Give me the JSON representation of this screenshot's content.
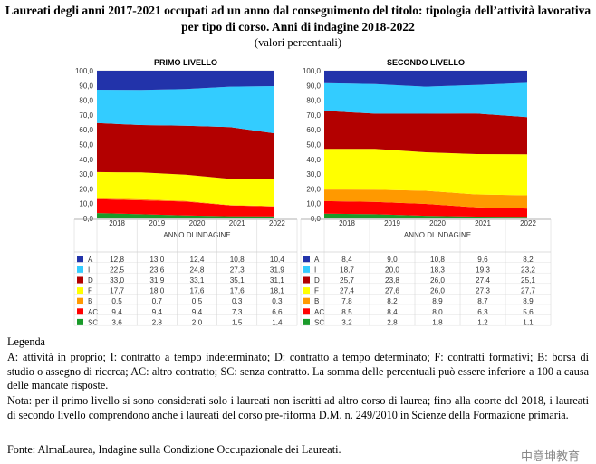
{
  "title_line1": "Laureati degli anni 2017-2021 occupati ad un anno dal conseguimento del titolo: tipologia dell’attività lavorativa",
  "title_line2": "per tipo di corso. Anni di indagine 2018-2022",
  "subtitle": "(valori percentuali)",
  "legend_heading": "Legenda",
  "legend_body": "A: attività in proprio; I: contratto a tempo indeterminato; D: contratto a tempo determinato; F: contratti formativi; B: borsa di studio o assegno di ricerca; AC: altro contratto; SC: senza contratto. La somma delle percentuali può essere inferiore a 100 a causa delle mancate risposte.",
  "note": "Nota: per il primo livello si sono considerati solo i laureati non iscritti ad altro corso di laurea; fino alla coorte del 2018, i laureati di secondo livello comprendono anche i laureati del corso pre-riforma D.M. n. 249/2010 in Scienze della Formazione primaria.",
  "source": "Fonte: AlmaLaurea, Indagine sulla Condizione Occupazionale dei Laureati.",
  "watermark": "中意坤教育",
  "colors": {
    "SC": "#1a9a2a",
    "AC": "#ff0000",
    "B": "#ff9900",
    "F": "#ffff00",
    "D": "#b30000",
    "I": "#33ccff",
    "A": "#2233aa"
  },
  "chart_data": [
    {
      "type": "area",
      "stacked": true,
      "title": "PRIMO LIVELLO",
      "xlabel": "ANNO DI INDAGINE",
      "x": [
        "2018",
        "2019",
        "2020",
        "2021",
        "2022"
      ],
      "ylim": [
        0,
        100
      ],
      "yticks": [
        "0,0",
        "10,0",
        "20,0",
        "30,0",
        "40,0",
        "50,0",
        "60,0",
        "70,0",
        "80,0",
        "90,0",
        "100,0"
      ],
      "grid": true,
      "series": [
        {
          "name": "A",
          "values": [
            12.8,
            13.0,
            12.4,
            10.8,
            10.4
          ],
          "labels": [
            "12,8",
            "13,0",
            "12,4",
            "10,8",
            "10,4"
          ]
        },
        {
          "name": "I",
          "values": [
            22.5,
            23.6,
            24.8,
            27.3,
            31.9
          ],
          "labels": [
            "22,5",
            "23,6",
            "24,8",
            "27,3",
            "31,9"
          ]
        },
        {
          "name": "D",
          "values": [
            33.0,
            31.9,
            33.1,
            35.1,
            31.1
          ],
          "labels": [
            "33,0",
            "31,9",
            "33,1",
            "35,1",
            "31,1"
          ]
        },
        {
          "name": "F",
          "values": [
            17.7,
            18.0,
            17.6,
            17.6,
            18.1
          ],
          "labels": [
            "17,7",
            "18,0",
            "17,6",
            "17,6",
            "18,1"
          ]
        },
        {
          "name": "B",
          "values": [
            0.5,
            0.7,
            0.5,
            0.3,
            0.3
          ],
          "labels": [
            "0,5",
            "0,7",
            "0,5",
            "0,3",
            "0,3"
          ]
        },
        {
          "name": "AC",
          "values": [
            9.4,
            9.4,
            9.4,
            7.3,
            6.6
          ],
          "labels": [
            "9,4",
            "9,4",
            "9,4",
            "7,3",
            "6,6"
          ]
        },
        {
          "name": "SC",
          "values": [
            3.6,
            2.8,
            2.0,
            1.5,
            1.4
          ],
          "labels": [
            "3,6",
            "2,8",
            "2,0",
            "1,5",
            "1,4"
          ]
        }
      ]
    },
    {
      "type": "area",
      "stacked": true,
      "title": "SECONDO LIVELLO",
      "xlabel": "ANNO DI INDAGINE",
      "x": [
        "2018",
        "2019",
        "2020",
        "2021",
        "2022"
      ],
      "ylim": [
        0,
        100
      ],
      "yticks": [
        "0,0",
        "10,0",
        "20,0",
        "30,0",
        "40,0",
        "50,0",
        "60,0",
        "70,0",
        "80,0",
        "90,0",
        "100,0"
      ],
      "grid": true,
      "series": [
        {
          "name": "A",
          "values": [
            8.4,
            9.0,
            10.8,
            9.6,
            8.2
          ],
          "labels": [
            "8,4",
            "9,0",
            "10,8",
            "9,6",
            "8,2"
          ]
        },
        {
          "name": "I",
          "values": [
            18.7,
            20.0,
            18.3,
            19.3,
            23.2
          ],
          "labels": [
            "18,7",
            "20,0",
            "18,3",
            "19,3",
            "23,2"
          ]
        },
        {
          "name": "D",
          "values": [
            25.7,
            23.8,
            26.0,
            27.4,
            25.1
          ],
          "labels": [
            "25,7",
            "23,8",
            "26,0",
            "27,4",
            "25,1"
          ]
        },
        {
          "name": "F",
          "values": [
            27.4,
            27.6,
            26.0,
            27.3,
            27.7
          ],
          "labels": [
            "27,4",
            "27,6",
            "26,0",
            "27,3",
            "27,7"
          ]
        },
        {
          "name": "B",
          "values": [
            7.8,
            8.2,
            8.9,
            8.7,
            8.9
          ],
          "labels": [
            "7,8",
            "8,2",
            "8,9",
            "8,7",
            "8,9"
          ]
        },
        {
          "name": "AC",
          "values": [
            8.5,
            8.4,
            8.0,
            6.3,
            5.6
          ],
          "labels": [
            "8,5",
            "8,4",
            "8,0",
            "6,3",
            "5,6"
          ]
        },
        {
          "name": "SC",
          "values": [
            3.2,
            2.8,
            1.8,
            1.2,
            1.1
          ],
          "labels": [
            "3,2",
            "2,8",
            "1,8",
            "1,2",
            "1,1"
          ]
        }
      ]
    }
  ]
}
